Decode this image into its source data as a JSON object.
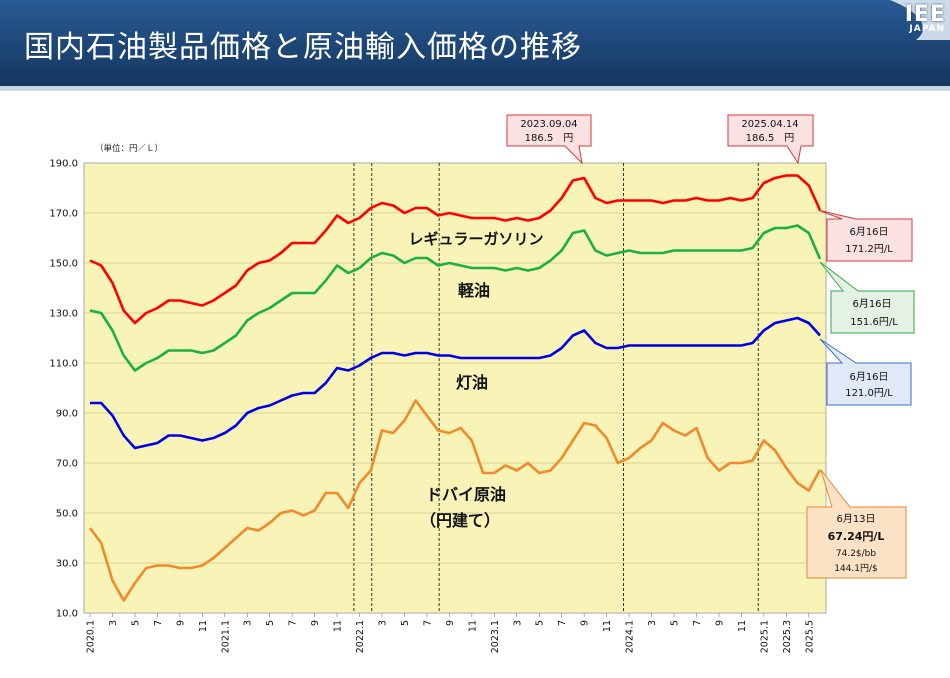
{
  "header": {
    "title": "国内石油製品価格と原油輸入価格の推移",
    "logo_main": "IEE",
    "logo_sub": "JAPAN"
  },
  "chart_data": {
    "type": "line",
    "unit_label": "（単位：円／Ｌ）",
    "ylim": [
      10,
      190
    ],
    "yticks": [
      "10.0",
      "30.0",
      "50.0",
      "70.0",
      "90.0",
      "110.0",
      "130.0",
      "150.0",
      "170.0",
      "190.0"
    ],
    "x_tick_labels": [
      "2020.1",
      "3",
      "5",
      "7",
      "9",
      "11",
      "2021.1",
      "3",
      "5",
      "7",
      "9",
      "11",
      "2022.1",
      "3",
      "5",
      "7",
      "9",
      "11",
      "2023.1",
      "3",
      "5",
      "7",
      "9",
      "11",
      "2024.1",
      "3",
      "5",
      "7",
      "9",
      "11",
      "2025.1",
      "2025.3",
      "2025.5"
    ],
    "highlight_month_indices": [
      25,
      31
    ],
    "colors": {
      "plot_bg": "#f8f3b6",
      "regular": "#ff0000",
      "diesel": "#1ab23c",
      "kerosene": "#0000e6",
      "crude": "#f08a2c"
    },
    "series": [
      {
        "key": "regular",
        "name": "レギュラーガソリン",
        "values": [
          151,
          149,
          142,
          131,
          126,
          130,
          132,
          135,
          135,
          134,
          133,
          135,
          138,
          141,
          147,
          150,
          151,
          154,
          158,
          158,
          158,
          163,
          169,
          166,
          168,
          172,
          174,
          173,
          170,
          172,
          172,
          169,
          170,
          169,
          168,
          168,
          168,
          167,
          168,
          167,
          168,
          171,
          176,
          183,
          184,
          176,
          174,
          175,
          175,
          175,
          175,
          174,
          175,
          175,
          176,
          175,
          175,
          176,
          175,
          176,
          182,
          184,
          185,
          185,
          181,
          171.2
        ]
      },
      {
        "key": "diesel",
        "name": "軽油",
        "values": [
          131,
          130,
          123,
          113,
          107,
          110,
          112,
          115,
          115,
          115,
          114,
          115,
          118,
          121,
          127,
          130,
          132,
          135,
          138,
          138,
          138,
          143,
          149,
          146,
          148,
          152,
          154,
          153,
          150,
          152,
          152,
          149,
          150,
          149,
          148,
          148,
          148,
          147,
          148,
          147,
          148,
          151,
          155,
          162,
          163,
          155,
          153,
          154,
          155,
          154,
          154,
          154,
          155,
          155,
          155,
          155,
          155,
          155,
          155,
          156,
          162,
          164,
          164,
          165,
          162,
          151.6
        ]
      },
      {
        "key": "kerosene",
        "name": "灯油",
        "values": [
          94,
          94,
          89,
          81,
          76,
          77,
          78,
          81,
          81,
          80,
          79,
          80,
          82,
          85,
          90,
          92,
          93,
          95,
          97,
          98,
          98,
          102,
          108,
          107,
          109,
          112,
          114,
          114,
          113,
          114,
          114,
          113,
          113,
          112,
          112,
          112,
          112,
          112,
          112,
          112,
          112,
          113,
          116,
          121,
          123,
          118,
          116,
          116,
          117,
          117,
          117,
          117,
          117,
          117,
          117,
          117,
          117,
          117,
          117,
          118,
          123,
          126,
          127,
          128,
          126,
          121.0
        ]
      },
      {
        "key": "crude",
        "name": "ドバイ原油",
        "values": [
          44,
          38,
          23,
          15,
          22,
          28,
          29,
          29,
          28,
          28,
          29,
          32,
          36,
          40,
          44,
          43,
          46,
          50,
          51,
          49,
          51,
          58,
          58,
          52,
          62,
          67,
          83,
          82,
          87,
          95,
          89,
          83,
          82,
          84,
          79,
          66,
          66,
          69,
          67,
          70,
          66,
          67,
          72,
          79,
          86,
          85,
          80,
          70,
          72,
          76,
          79,
          86,
          83,
          81,
          84,
          72,
          67,
          70,
          70,
          71,
          79,
          75,
          68,
          62,
          59,
          67.24
        ]
      }
    ],
    "labels": {
      "regular": "レギュラーガソリン",
      "diesel": "軽油",
      "kerosene": "灯油",
      "crude_line1": "ドバイ原油",
      "crude_line2": "（円建て）"
    },
    "callouts": {
      "peak1": {
        "line1": "2023.09.04",
        "line2": "186.5　円"
      },
      "peak2": {
        "line1": "2025.04.14",
        "line2": "186.5　円"
      },
      "regular_latest": {
        "line1": "6月16日",
        "line2": "171.2円/L"
      },
      "diesel_latest": {
        "line1": "6月16日",
        "line2": "151.6円/L"
      },
      "kerosene_latest": {
        "line1": "6月16日",
        "line2": "121.0円/L"
      },
      "crude_latest": {
        "line1": "6月13日",
        "line2": "67.24円/L",
        "line3": "74.2$/bb",
        "line4": "144.1円/$"
      }
    }
  }
}
